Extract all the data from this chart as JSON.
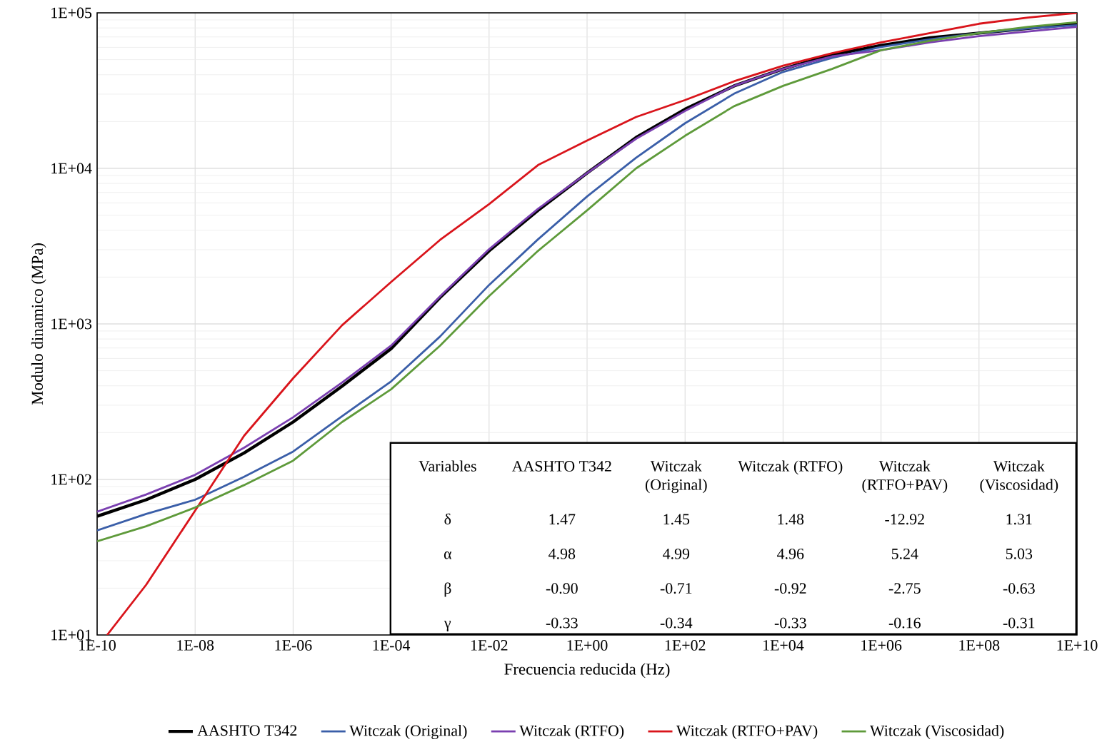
{
  "chart_data": {
    "type": "line",
    "xlabel": "Frecuencia reducida (Hz)",
    "ylabel": "Modulo dinamico (MPa)",
    "log": "xy",
    "grid": true,
    "legend": "bottom",
    "marker": "none",
    "line_style": "solid",
    "xlim": [
      1e-10,
      10000000000.0
    ],
    "ylim": [
      10,
      100000
    ],
    "xticks": [
      {
        "value": 1e-10,
        "label": "1E-10"
      },
      {
        "value": 1e-08,
        "label": "1E-08"
      },
      {
        "value": 1e-06,
        "label": "1E-06"
      },
      {
        "value": 0.0001,
        "label": "1E-04"
      },
      {
        "value": 0.01,
        "label": "1E-02"
      },
      {
        "value": 1,
        "label": "1E+00"
      },
      {
        "value": 100.0,
        "label": "1E+02"
      },
      {
        "value": 10000.0,
        "label": "1E+04"
      },
      {
        "value": 1000000.0,
        "label": "1E+06"
      },
      {
        "value": 100000000.0,
        "label": "1E+08"
      },
      {
        "value": 10000000000.0,
        "label": "1E+10"
      }
    ],
    "yticks": [
      {
        "value": 10,
        "label": "1E+01"
      },
      {
        "value": 100,
        "label": "1E+02"
      },
      {
        "value": 1000,
        "label": "1E+03"
      },
      {
        "value": 10000,
        "label": "1E+04"
      },
      {
        "value": 100000,
        "label": "1E+05"
      }
    ],
    "x": [
      1e-10,
      1e-09,
      1e-08,
      1e-07,
      1e-06,
      1e-05,
      0.0001,
      0.001,
      0.01,
      0.1,
      1,
      10.0,
      100.0,
      1000.0,
      10000.0,
      100000.0,
      1000000.0,
      10000000.0,
      100000000.0,
      1000000000.0,
      10000000000.0
    ],
    "series": [
      {
        "name": "AASHTO T342",
        "color": "#000000",
        "values": [
          58,
          74,
          100,
          148,
          234,
          398,
          692,
          1480,
          2950,
          5370,
          9330,
          15800,
          24000,
          33900,
          43600,
          53700,
          61700,
          69200,
          74100,
          79400,
          85100
        ]
      },
      {
        "name": "Witczak (Original)",
        "color": "#3a5ea8",
        "values": [
          47,
          60,
          74,
          104,
          151,
          255,
          427,
          830,
          1780,
          3500,
          6600,
          11700,
          19500,
          30200,
          41700,
          51300,
          60300,
          67600,
          74100,
          79400,
          83200
        ]
      },
      {
        "name": "Witczak (RTFO)",
        "color": "#7a3fb0",
        "values": [
          62,
          80,
          107,
          160,
          251,
          420,
          725,
          1500,
          3020,
          5500,
          9330,
          15500,
          23400,
          33900,
          43600,
          52500,
          57500,
          64600,
          70800,
          75900,
          81300
        ]
      },
      {
        "name": "Witczak (RTFO+PAV)",
        "color": "#d9141b",
        "x": [
          1.6e-10,
          1e-09,
          1e-08,
          1e-07,
          1e-06,
          1e-05,
          0.0001,
          0.001,
          0.01,
          0.1,
          1,
          10.0,
          100.0,
          1000.0,
          10000.0,
          100000.0,
          1000000.0,
          10000000.0,
          100000000.0,
          1000000000.0,
          10000000000.0
        ],
        "values": [
          10,
          21,
          63,
          191,
          447,
          980,
          1860,
          3470,
          5890,
          10500,
          15100,
          21400,
          27500,
          36300,
          45700,
          55000,
          64600,
          74100,
          85100,
          93300,
          100000
        ]
      },
      {
        "name": "Witczak (Viscosidad)",
        "color": "#5e9a3a",
        "values": [
          40,
          50,
          66,
          92,
          132,
          234,
          380,
          725,
          1510,
          2950,
          5370,
          10000,
          16200,
          25100,
          33900,
          43600,
          57500,
          66100,
          74100,
          81300,
          87100
        ]
      }
    ],
    "annotations": [
      "Variables",
      "AASHTO T342",
      "Witczak (Original)",
      "Witczak (RTFO)",
      "Witczak (RTFO+PAV)",
      "Witczak (Viscosidad)",
      "δ",
      "1.47",
      "1.45",
      "1.48",
      "-12.92",
      "1.31",
      "α",
      "4.98",
      "4.99",
      "4.96",
      "5.24",
      "5.03",
      "β",
      "-0.90",
      "-0.71",
      "-0.92",
      "-2.75",
      "-0.63",
      "γ",
      "-0.33",
      "-0.34",
      "-0.33",
      "-0.16",
      "-0.31"
    ]
  }
}
